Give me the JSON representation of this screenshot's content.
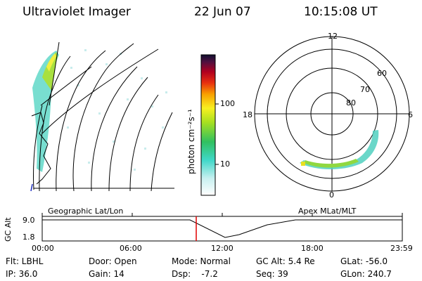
{
  "header": {
    "instrument": "Ultraviolet Imager",
    "date": "22 Jun 07",
    "time": "10:15:08 UT"
  },
  "colorbar": {
    "unit_label": "photon cm⁻²s⁻¹",
    "ticks": [
      "100",
      "10"
    ],
    "scale": "log"
  },
  "polar_plot": {
    "mlt_labels": {
      "top": "12",
      "left": "18",
      "right": "6",
      "bottom": "0"
    },
    "mlat_labels": [
      "60",
      "70",
      "80"
    ]
  },
  "timeline": {
    "left_title": "Geographic Lat/Lon",
    "right_title": "Apex MLat/MLT",
    "y_axis_label": "GC Alt",
    "y_ticks": [
      "9.0",
      "1.8"
    ],
    "x_ticks": [
      "00:00",
      "06:00",
      "12:00",
      "18:00",
      "23:59"
    ],
    "current_time_marker": "10:15",
    "marker_color": "#e00000"
  },
  "info": {
    "flt": "Flt: LBHL",
    "ip": "IP: 36.0",
    "door": "Door: Open",
    "gain": "Gain: 14",
    "mode": "Mode: Normal",
    "dsp": "Dsp:    -7.2",
    "gcalt": "GC Alt: 5.4 Re",
    "seq": "Seq: 39",
    "glat": "GLat: -56.0",
    "glon": "GLon: 240.7"
  }
}
